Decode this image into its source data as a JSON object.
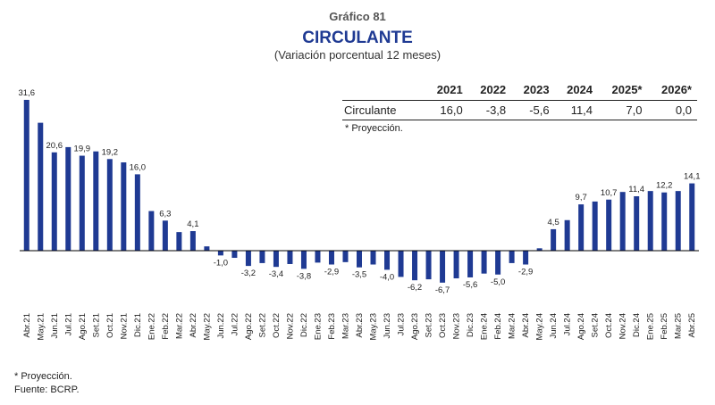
{
  "header": {
    "figure_number": "Gráfico 81",
    "title": "CIRCULANTE",
    "subtitle": "(Variación porcentual 12 meses)"
  },
  "annual_table": {
    "years": [
      "2021",
      "2022",
      "2023",
      "2024",
      "2025*",
      "2026*"
    ],
    "row_label": "Circulante",
    "values": [
      "16,0",
      "-3,8",
      "-5,6",
      "11,4",
      "7,0",
      "0,0"
    ],
    "note": "* Proyección."
  },
  "footer": {
    "note": "* Proyección.",
    "source": "Fuente: BCRP."
  },
  "colors": {
    "bar": "#1f3a93",
    "axis": "#000000",
    "title": "#1f3a93"
  },
  "chart_data": {
    "type": "bar",
    "title": "CIRCULANTE",
    "subtitle": "(Variación porcentual 12 meses)",
    "categories": [
      "Abr.21",
      "May.21",
      "Jun.21",
      "Jul.21",
      "Ago.21",
      "Set.21",
      "Oct.21",
      "Nov.21",
      "Dic.21",
      "Ene.22",
      "Feb.22",
      "Mar.22",
      "Abr.22",
      "May.22",
      "Jun.22",
      "Jul.22",
      "Ago.22",
      "Set.22",
      "Oct.22",
      "Nov.22",
      "Dic.22",
      "Ene.23",
      "Feb.23",
      "Mar.23",
      "Abr.23",
      "May.23",
      "Jun.23",
      "Jul.23",
      "Ago.23",
      "Set.23",
      "Oct.23",
      "Nov.23",
      "Dic.23",
      "Ene.24",
      "Feb.24",
      "Mar.24",
      "Abr.24",
      "May.24",
      "Jun.24",
      "Jul.24",
      "Ago.24",
      "Set.24",
      "Oct.24",
      "Nov.24",
      "Dic.24",
      "Ene.25",
      "Feb.25",
      "Mar.25",
      "Abr.25"
    ],
    "values": [
      31.6,
      26.8,
      20.6,
      21.7,
      19.9,
      20.8,
      19.2,
      18.5,
      16.0,
      8.3,
      6.3,
      3.9,
      4.1,
      0.9,
      -1.0,
      -1.5,
      -3.2,
      -2.6,
      -3.4,
      -2.8,
      -3.8,
      -2.5,
      -2.9,
      -2.4,
      -3.5,
      -2.9,
      -4.0,
      -5.5,
      -6.2,
      -6.0,
      -6.7,
      -5.8,
      -5.6,
      -4.8,
      -5.0,
      -2.6,
      -2.9,
      0.5,
      4.5,
      6.4,
      9.7,
      10.3,
      10.7,
      12.3,
      11.4,
      12.5,
      12.2,
      12.5,
      14.1
    ],
    "labels": [
      "31,6",
      "",
      "20,6",
      "",
      "19,9",
      "",
      "19,2",
      "",
      "16,0",
      "",
      "6,3",
      "",
      "4,1",
      "",
      "-1,0",
      "",
      "-3,2",
      "",
      "-3,4",
      "",
      "-3,8",
      "",
      "-2,9",
      "",
      "-3,5",
      "",
      "-4,0",
      "",
      "-6,2",
      "",
      "-6,7",
      "",
      "-5,6",
      "",
      "-5,0",
      "",
      "-2,9",
      "",
      "4,5",
      "",
      "9,7",
      "",
      "10,7",
      "",
      "11,4",
      "",
      "12,2",
      "",
      "14,1"
    ],
    "ylim": [
      -10,
      33
    ],
    "grid": false,
    "legend": "none"
  }
}
